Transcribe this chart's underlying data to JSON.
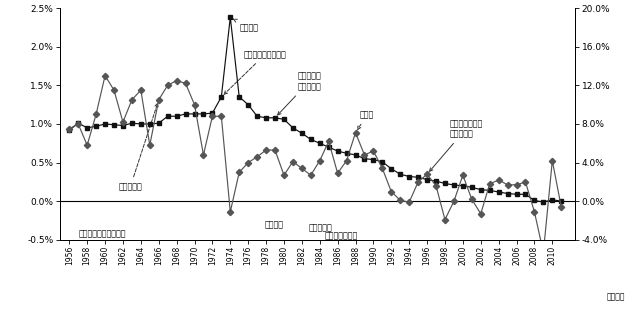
{
  "years": [
    1956,
    1957,
    1958,
    1959,
    1960,
    1961,
    1962,
    1963,
    1964,
    1965,
    1966,
    1967,
    1968,
    1969,
    1970,
    1971,
    1972,
    1973,
    1974,
    1975,
    1976,
    1977,
    1978,
    1979,
    1980,
    1981,
    1982,
    1983,
    1984,
    1985,
    1986,
    1987,
    1988,
    1989,
    1990,
    1991,
    1992,
    1993,
    1994,
    1995,
    1996,
    1997,
    1998,
    1999,
    2000,
    2001,
    2002,
    2003,
    2004,
    2005,
    2006,
    2007,
    2008,
    2009,
    2010,
    2011
  ],
  "pop_growth": [
    0.0092,
    0.0101,
    0.0095,
    0.0097,
    0.01,
    0.0099,
    0.0098,
    0.0101,
    0.01,
    0.01,
    0.0101,
    0.011,
    0.011,
    0.0113,
    0.0113,
    0.0113,
    0.0114,
    0.0135,
    0.0238,
    0.0135,
    0.0125,
    0.011,
    0.0108,
    0.0108,
    0.0106,
    0.0095,
    0.0088,
    0.008,
    0.0075,
    0.007,
    0.0065,
    0.0062,
    0.006,
    0.0055,
    0.0054,
    0.0051,
    0.0042,
    0.0035,
    0.0032,
    0.0031,
    0.0028,
    0.0026,
    0.0023,
    0.0021,
    0.002,
    0.0018,
    0.0015,
    0.0014,
    0.0012,
    0.001,
    0.0009,
    0.0009,
    0.0001,
    -0.0001,
    0.0002,
    0.0
  ],
  "gdp_growth": [
    0.075,
    0.08,
    0.058,
    0.09,
    0.13,
    0.115,
    0.082,
    0.105,
    0.115,
    0.058,
    0.105,
    0.12,
    0.125,
    0.122,
    0.1,
    0.048,
    0.088,
    0.088,
    -0.011,
    0.03,
    0.04,
    0.046,
    0.053,
    0.053,
    0.027,
    0.041,
    0.034,
    0.027,
    0.042,
    0.062,
    0.029,
    0.042,
    0.071,
    0.048,
    0.052,
    0.034,
    0.01,
    0.001,
    -0.001,
    0.02,
    0.028,
    0.016,
    -0.019,
    0.0,
    0.027,
    0.002,
    -0.013,
    0.018,
    0.022,
    0.017,
    0.017,
    0.02,
    -0.011,
    -0.053,
    0.042,
    -0.006
  ],
  "ylim_left": [
    -0.005,
    0.025
  ],
  "ylim_right": [
    -0.04,
    0.2
  ],
  "xlim": [
    1955.0,
    2012.5
  ],
  "xlabel": "（年度）",
  "line1_color": "#111111",
  "line2_color": "#555555"
}
